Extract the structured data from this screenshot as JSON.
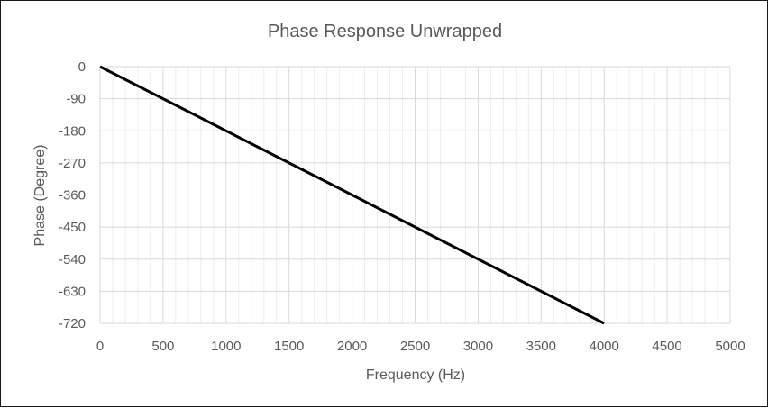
{
  "chart_data": {
    "type": "line",
    "title": "Phase Response Unwrapped",
    "xlabel": "Frequency (Hz)",
    "ylabel": "Phase (Degree)",
    "xlim": [
      0,
      5000
    ],
    "ylim": [
      -720,
      0
    ],
    "x_ticks": [
      0,
      500,
      1000,
      1500,
      2000,
      2500,
      3000,
      3500,
      4000,
      4500,
      5000
    ],
    "y_ticks": [
      0,
      -90,
      -180,
      -270,
      -360,
      -450,
      -540,
      -630,
      -720
    ],
    "x_tick_labels": [
      "0",
      "500",
      "1000",
      "1500",
      "2000",
      "2500",
      "3000",
      "3500",
      "4000",
      "4500",
      "5000"
    ],
    "y_tick_labels": [
      "0",
      "-90",
      "-180",
      "-270",
      "-360",
      "-450",
      "-540",
      "-630",
      "-720"
    ],
    "x_minor_step": 100,
    "grid": true,
    "legend": "none",
    "series": [
      {
        "x": [
          0,
          4000
        ],
        "y": [
          0,
          -720
        ],
        "color": "#000000"
      }
    ],
    "colors": {
      "line": "#000000",
      "major_grid": "#d9d9d9",
      "minor_grid": "#ededed",
      "text": "#595959",
      "border": "#1a1a1a"
    }
  }
}
